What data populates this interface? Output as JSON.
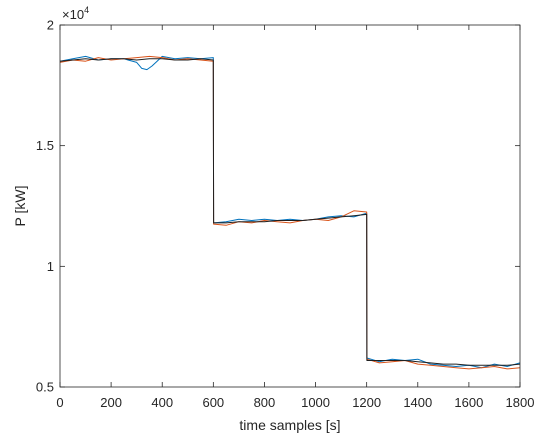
{
  "chart_data": {
    "type": "line",
    "title": "",
    "xlabel": "time samples [s]",
    "ylabel": "P [kW]",
    "xlim": [
      0,
      1800
    ],
    "ylim": [
      5000,
      20000
    ],
    "xticks": [
      0,
      200,
      400,
      600,
      800,
      1000,
      1200,
      1400,
      1600,
      1800
    ],
    "xtick_labels": [
      "0",
      "200",
      "400",
      "600",
      "800",
      "1000",
      "1200",
      "1400",
      "1600",
      "1800"
    ],
    "yticks": [
      5000,
      10000,
      15000,
      20000
    ],
    "ytick_labels": [
      "0.5",
      "1",
      "1.5",
      "2"
    ],
    "y_exponent_label": "×10",
    "y_exponent_power": "4",
    "grid": false,
    "legend": "none",
    "series": [
      {
        "color": "#0072bd",
        "x": [
          0,
          50,
          100,
          150,
          200,
          250,
          300,
          320,
          340,
          360,
          380,
          400,
          450,
          500,
          550,
          600,
          601,
          650,
          700,
          750,
          800,
          850,
          900,
          950,
          1000,
          1050,
          1100,
          1150,
          1200,
          1201,
          1250,
          1300,
          1350,
          1400,
          1450,
          1500,
          1550,
          1600,
          1650,
          1700,
          1750,
          1800
        ],
        "y": [
          18500,
          18600,
          18700,
          18550,
          18600,
          18600,
          18450,
          18200,
          18150,
          18300,
          18500,
          18700,
          18600,
          18650,
          18600,
          18650,
          11800,
          11850,
          11950,
          11900,
          11950,
          11900,
          11950,
          11900,
          11950,
          12050,
          12100,
          12050,
          12200,
          6200,
          6050,
          6150,
          6100,
          6150,
          5950,
          5900,
          5850,
          5900,
          5800,
          5950,
          5850,
          6000
        ]
      },
      {
        "color": "#d95319",
        "x": [
          0,
          50,
          100,
          150,
          200,
          250,
          300,
          350,
          400,
          450,
          500,
          550,
          600,
          601,
          650,
          700,
          750,
          800,
          850,
          900,
          950,
          1000,
          1050,
          1100,
          1150,
          1200,
          1201,
          1250,
          1300,
          1350,
          1400,
          1450,
          1500,
          1550,
          1600,
          1650,
          1700,
          1750,
          1800
        ],
        "y": [
          18450,
          18550,
          18500,
          18650,
          18550,
          18600,
          18650,
          18700,
          18650,
          18550,
          18600,
          18550,
          18500,
          11750,
          11700,
          11850,
          11800,
          11900,
          11850,
          11800,
          11900,
          11950,
          11900,
          12050,
          12300,
          12250,
          6150,
          6000,
          6050,
          6100,
          5950,
          5900,
          5850,
          5800,
          5750,
          5800,
          5850,
          5750,
          5800
        ]
      },
      {
        "color": "#202020",
        "x": [
          0,
          50,
          100,
          150,
          200,
          250,
          300,
          350,
          400,
          450,
          500,
          550,
          600,
          601,
          650,
          700,
          750,
          800,
          850,
          900,
          950,
          1000,
          1050,
          1100,
          1150,
          1200,
          1201,
          1250,
          1300,
          1350,
          1400,
          1450,
          1500,
          1550,
          1600,
          1650,
          1700,
          1750,
          1800
        ],
        "y": [
          18500,
          18550,
          18600,
          18550,
          18600,
          18600,
          18550,
          18600,
          18600,
          18550,
          18550,
          18600,
          18550,
          11800,
          11800,
          11850,
          11850,
          11850,
          11900,
          11900,
          11900,
          11950,
          12000,
          12050,
          12100,
          12150,
          6100,
          6100,
          6100,
          6100,
          6050,
          6000,
          5950,
          5950,
          5900,
          5900,
          5900,
          5900,
          5950
        ]
      }
    ]
  }
}
